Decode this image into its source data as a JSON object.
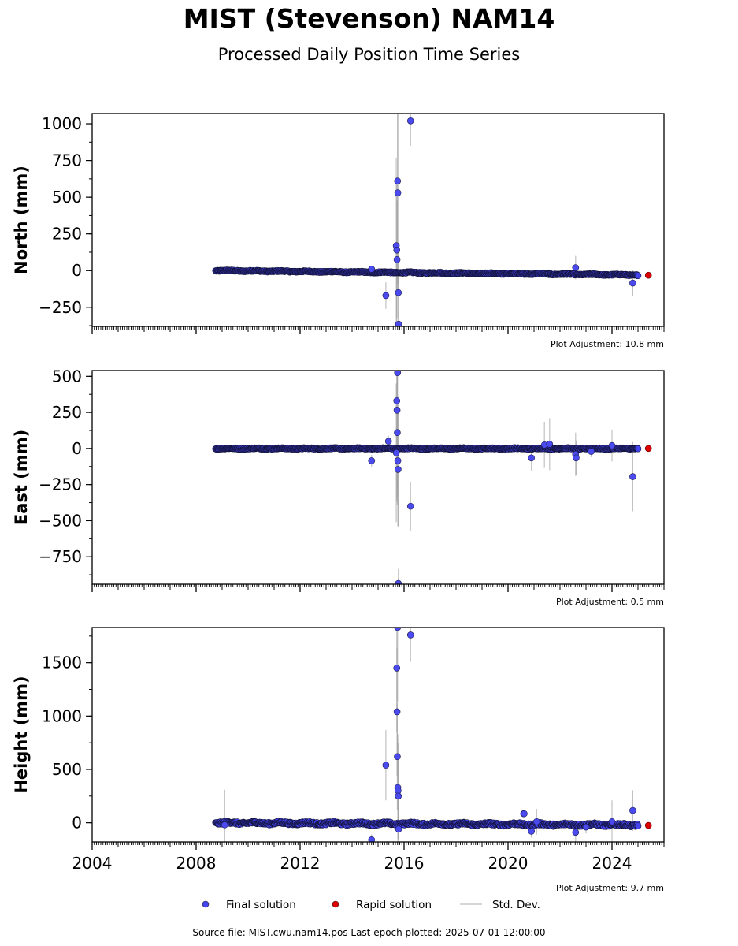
{
  "title": "MIST (Stevenson) NAM14",
  "subtitle": "Processed Daily Position Time Series",
  "footer": "Source file: MIST.cwu.nam14.pos  Last epoch plotted: 2025-07-01 12:00:00",
  "chart_data": {
    "type": "scatter",
    "x_axis": {
      "range": [
        2004.0,
        2026.0
      ],
      "ticks": [
        2004,
        2008,
        2012,
        2016,
        2020,
        2024
      ],
      "tick_labels": [
        "2004",
        "2008",
        "2012",
        "2016",
        "2020",
        "2024"
      ]
    },
    "legend": {
      "position": "bottom-center",
      "entries": [
        {
          "label": "Final solution",
          "color": "#4444ee",
          "kind": "marker"
        },
        {
          "label": "Rapid solution",
          "color": "#dd0000",
          "kind": "marker"
        },
        {
          "label": "Std. Dev.",
          "color": "#c8c8c8",
          "kind": "line"
        }
      ]
    },
    "panels": [
      {
        "ylabel": "North (mm)",
        "ylim": [
          -380,
          1070
        ],
        "yticks": [
          -250,
          0,
          250,
          500,
          750,
          1000
        ],
        "ytick_labels": [
          "−250",
          "0",
          "250",
          "500",
          "750",
          "1000"
        ],
        "adjustment": "Plot Adjustment: 10.8 mm",
        "trend": {
          "x_start": 2008.75,
          "y_start": 0,
          "x_end": 2025.0,
          "y_end": -30,
          "amplitude": 4
        },
        "outliers": [
          {
            "x": 2014.75,
            "y": 10,
            "err": 15
          },
          {
            "x": 2015.3,
            "y": -170,
            "err": 90
          },
          {
            "x": 2015.7,
            "y": 170,
            "err": 600
          },
          {
            "x": 2015.72,
            "y": 140,
            "err": 500
          },
          {
            "x": 2015.73,
            "y": 75,
            "err": 400
          },
          {
            "x": 2015.75,
            "y": 610,
            "err": 700
          },
          {
            "x": 2015.76,
            "y": 530,
            "err": 700
          },
          {
            "x": 2015.78,
            "y": -150,
            "err": 300
          },
          {
            "x": 2015.79,
            "y": -365,
            "err": 350
          },
          {
            "x": 2016.25,
            "y": 1020,
            "err": 170
          },
          {
            "x": 2022.6,
            "y": 20,
            "err": 80
          },
          {
            "x": 2024.8,
            "y": -85,
            "err": 90
          }
        ],
        "rapid": [
          {
            "x": 2025.4,
            "y": -32
          }
        ]
      },
      {
        "ylabel": "East (mm)",
        "ylim": [
          -940,
          540
        ],
        "yticks": [
          -750,
          -500,
          -250,
          0,
          250,
          500
        ],
        "ytick_labels": [
          "−750",
          "−500",
          "−250",
          "0",
          "250",
          "500"
        ],
        "adjustment": "Plot Adjustment: 0.5 mm",
        "trend": {
          "x_start": 2008.75,
          "y_start": 0,
          "x_end": 2025.0,
          "y_end": 0,
          "amplitude": 4
        },
        "outliers": [
          {
            "x": 2014.75,
            "y": -85,
            "err": 40
          },
          {
            "x": 2015.4,
            "y": 50,
            "err": 40
          },
          {
            "x": 2015.72,
            "y": 330,
            "err": 700
          },
          {
            "x": 2015.73,
            "y": 265,
            "err": 600
          },
          {
            "x": 2015.74,
            "y": 110,
            "err": 500
          },
          {
            "x": 2015.75,
            "y": 525,
            "err": 800
          },
          {
            "x": 2015.76,
            "y": -85,
            "err": 450
          },
          {
            "x": 2015.77,
            "y": -145,
            "err": 400
          },
          {
            "x": 2015.78,
            "y": -935,
            "err": 100
          },
          {
            "x": 2015.7,
            "y": -30,
            "err": 480
          },
          {
            "x": 2016.25,
            "y": -400,
            "err": 170
          },
          {
            "x": 2020.9,
            "y": -65,
            "err": 90
          },
          {
            "x": 2021.4,
            "y": 25,
            "err": 160
          },
          {
            "x": 2021.6,
            "y": 30,
            "err": 180
          },
          {
            "x": 2022.6,
            "y": -40,
            "err": 150
          },
          {
            "x": 2022.62,
            "y": -65,
            "err": 120
          },
          {
            "x": 2023.2,
            "y": -20,
            "err": 40
          },
          {
            "x": 2024.0,
            "y": 20,
            "err": 110
          },
          {
            "x": 2024.8,
            "y": -195,
            "err": 240
          }
        ],
        "rapid": [
          {
            "x": 2025.4,
            "y": 0
          }
        ]
      },
      {
        "ylabel": "Height (mm)",
        "ylim": [
          -180,
          1830
        ],
        "yticks": [
          0,
          500,
          1000,
          1500
        ],
        "ytick_labels": [
          "0",
          "500",
          "1000",
          "1500"
        ],
        "adjustment": "Plot Adjustment: 9.7 mm",
        "trend": {
          "x_start": 2008.75,
          "y_start": 0,
          "x_end": 2025.0,
          "y_end": -20,
          "amplitude": 12
        },
        "outliers": [
          {
            "x": 2009.1,
            "y": -20,
            "err": 330
          },
          {
            "x": 2014.75,
            "y": -160,
            "err": 50
          },
          {
            "x": 2015.3,
            "y": 540,
            "err": 330
          },
          {
            "x": 2015.72,
            "y": 1450,
            "err": 600
          },
          {
            "x": 2015.73,
            "y": 1040,
            "err": 600
          },
          {
            "x": 2015.74,
            "y": 620,
            "err": 500
          },
          {
            "x": 2015.75,
            "y": 1830,
            "err": 700
          },
          {
            "x": 2015.76,
            "y": 330,
            "err": 500
          },
          {
            "x": 2015.77,
            "y": 300,
            "err": 450
          },
          {
            "x": 2015.78,
            "y": 250,
            "err": 400
          },
          {
            "x": 2015.79,
            "y": -60,
            "err": 300
          },
          {
            "x": 2016.25,
            "y": 1760,
            "err": 250
          },
          {
            "x": 2020.6,
            "y": 85,
            "err": 20
          },
          {
            "x": 2020.62,
            "y": 85,
            "err": 20
          },
          {
            "x": 2020.9,
            "y": -80,
            "err": 60
          },
          {
            "x": 2021.1,
            "y": 10,
            "err": 120
          },
          {
            "x": 2022.6,
            "y": -90,
            "err": 110
          },
          {
            "x": 2023.0,
            "y": -40,
            "err": 60
          },
          {
            "x": 2024.0,
            "y": 10,
            "err": 200
          },
          {
            "x": 2024.8,
            "y": 115,
            "err": 190
          }
        ],
        "rapid": [
          {
            "x": 2025.4,
            "y": -25
          }
        ]
      }
    ]
  }
}
